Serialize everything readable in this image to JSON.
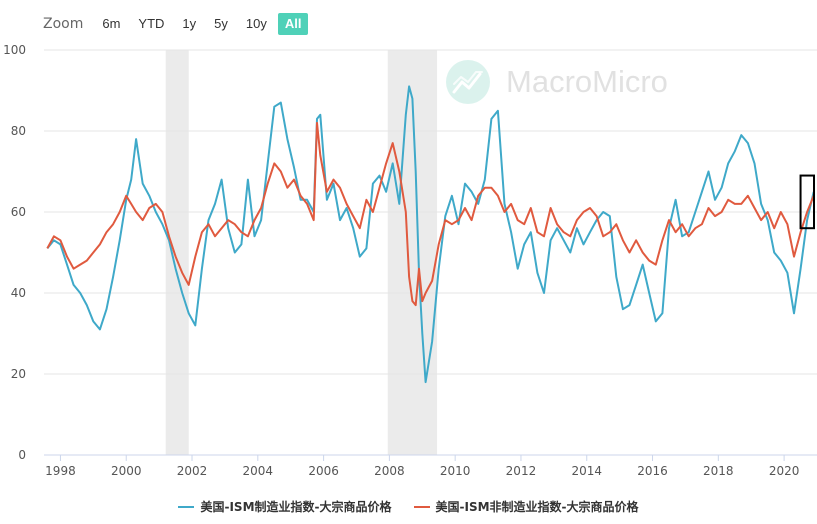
{
  "zoom": {
    "label": "Zoom",
    "buttons": [
      {
        "label": "6m",
        "active": false
      },
      {
        "label": "YTD",
        "active": false
      },
      {
        "label": "1y",
        "active": false
      },
      {
        "label": "5y",
        "active": false
      },
      {
        "label": "10y",
        "active": false
      },
      {
        "label": "All",
        "active": true
      }
    ]
  },
  "watermark": {
    "text": "MacroMicro"
  },
  "colors": {
    "accent": "#4fd1b8",
    "series_blue": "#3fa9c9",
    "series_red": "#e05a3f",
    "recession": "#ebebeb",
    "grid": "#e6e6e6"
  },
  "chart_data": {
    "type": "line",
    "title": "",
    "xlabel": "",
    "ylabel": "",
    "xlim": [
      1997.5,
      2021.0
    ],
    "ylim": [
      0,
      100
    ],
    "yticks": [
      0,
      20,
      40,
      60,
      80,
      100
    ],
    "xticks": [
      1998,
      2000,
      2002,
      2004,
      2006,
      2008,
      2010,
      2012,
      2014,
      2016,
      2018,
      2020
    ],
    "grid": true,
    "legend_position": "bottom",
    "recession_bands": [
      [
        2001.2,
        2001.9
      ],
      [
        2007.95,
        2009.45
      ]
    ],
    "highlight_box": {
      "x": [
        2020.5,
        2021.0
      ],
      "y": [
        56,
        69
      ]
    },
    "series": [
      {
        "name": "美国-ISM制造业指数-大宗商品价格",
        "color": "#3fa9c9",
        "x": [
          1997.6,
          1997.8,
          1998.0,
          1998.2,
          1998.4,
          1998.6,
          1998.8,
          1999.0,
          1999.2,
          1999.4,
          1999.6,
          1999.8,
          2000.0,
          2000.15,
          2000.3,
          2000.5,
          2000.7,
          2000.9,
          2001.1,
          2001.3,
          2001.5,
          2001.7,
          2001.9,
          2002.1,
          2002.3,
          2002.5,
          2002.7,
          2002.9,
          2003.1,
          2003.3,
          2003.5,
          2003.7,
          2003.9,
          2004.1,
          2004.3,
          2004.5,
          2004.7,
          2004.9,
          2005.1,
          2005.3,
          2005.5,
          2005.7,
          2005.8,
          2005.9,
          2006.1,
          2006.3,
          2006.5,
          2006.7,
          2006.9,
          2007.1,
          2007.3,
          2007.5,
          2007.7,
          2007.9,
          2008.1,
          2008.3,
          2008.5,
          2008.6,
          2008.7,
          2008.8,
          2008.9,
          2009.0,
          2009.1,
          2009.3,
          2009.5,
          2009.7,
          2009.9,
          2010.1,
          2010.3,
          2010.5,
          2010.7,
          2010.9,
          2011.1,
          2011.3,
          2011.5,
          2011.7,
          2011.9,
          2012.1,
          2012.3,
          2012.5,
          2012.7,
          2012.9,
          2013.1,
          2013.3,
          2013.5,
          2013.7,
          2013.9,
          2014.1,
          2014.3,
          2014.5,
          2014.7,
          2014.9,
          2015.1,
          2015.3,
          2015.5,
          2015.7,
          2015.9,
          2016.1,
          2016.3,
          2016.5,
          2016.7,
          2016.9,
          2017.1,
          2017.3,
          2017.5,
          2017.7,
          2017.9,
          2018.1,
          2018.3,
          2018.5,
          2018.7,
          2018.9,
          2019.1,
          2019.3,
          2019.5,
          2019.7,
          2019.9,
          2020.1,
          2020.3,
          2020.5,
          2020.7,
          2020.9
        ],
        "y": [
          51,
          53,
          52,
          47,
          42,
          40,
          37,
          33,
          31,
          36,
          44,
          53,
          63,
          68,
          78,
          67,
          64,
          60,
          57,
          53,
          46,
          40,
          35,
          32,
          46,
          58,
          62,
          68,
          56,
          50,
          52,
          68,
          54,
          58,
          72,
          86,
          87,
          78,
          71,
          63,
          63,
          60,
          83,
          84,
          63,
          67,
          58,
          61,
          56,
          49,
          51,
          67,
          69,
          65,
          72,
          62,
          84,
          91,
          88,
          70,
          45,
          30,
          18,
          28,
          46,
          59,
          64,
          57,
          67,
          65,
          62,
          68,
          83,
          85,
          62,
          55,
          46,
          52,
          55,
          45,
          40,
          53,
          56,
          53,
          50,
          56,
          52,
          55,
          58,
          60,
          59,
          44,
          36,
          37,
          42,
          47,
          40,
          33,
          35,
          56,
          63,
          54,
          55,
          60,
          65,
          70,
          63,
          66,
          72,
          75,
          79,
          77,
          72,
          62,
          58,
          50,
          48,
          45,
          35,
          46,
          58,
          65
        ]
      },
      {
        "name": "美国-ISM非制造业指数-大宗商品价格",
        "color": "#e05a3f",
        "x": [
          1997.6,
          1997.8,
          1998.0,
          1998.2,
          1998.4,
          1998.6,
          1998.8,
          1999.0,
          1999.2,
          1999.4,
          1999.6,
          1999.8,
          2000.0,
          2000.15,
          2000.3,
          2000.5,
          2000.7,
          2000.9,
          2001.1,
          2001.3,
          2001.5,
          2001.7,
          2001.9,
          2002.1,
          2002.3,
          2002.5,
          2002.7,
          2002.9,
          2003.1,
          2003.3,
          2003.5,
          2003.7,
          2003.9,
          2004.1,
          2004.3,
          2004.5,
          2004.7,
          2004.9,
          2005.1,
          2005.3,
          2005.5,
          2005.7,
          2005.8,
          2005.9,
          2006.1,
          2006.3,
          2006.5,
          2006.7,
          2006.9,
          2007.1,
          2007.3,
          2007.5,
          2007.7,
          2007.9,
          2008.1,
          2008.3,
          2008.5,
          2008.6,
          2008.7,
          2008.8,
          2008.9,
          2009.0,
          2009.1,
          2009.3,
          2009.5,
          2009.7,
          2009.9,
          2010.1,
          2010.3,
          2010.5,
          2010.7,
          2010.9,
          2011.1,
          2011.3,
          2011.5,
          2011.7,
          2011.9,
          2012.1,
          2012.3,
          2012.5,
          2012.7,
          2012.9,
          2013.1,
          2013.3,
          2013.5,
          2013.7,
          2013.9,
          2014.1,
          2014.3,
          2014.5,
          2014.7,
          2014.9,
          2015.1,
          2015.3,
          2015.5,
          2015.7,
          2015.9,
          2016.1,
          2016.3,
          2016.5,
          2016.7,
          2016.9,
          2017.1,
          2017.3,
          2017.5,
          2017.7,
          2017.9,
          2018.1,
          2018.3,
          2018.5,
          2018.7,
          2018.9,
          2019.1,
          2019.3,
          2019.5,
          2019.7,
          2019.9,
          2020.1,
          2020.3,
          2020.5,
          2020.7,
          2020.9
        ],
        "y": [
          51,
          54,
          53,
          49,
          46,
          47,
          48,
          50,
          52,
          55,
          57,
          60,
          64,
          62,
          60,
          58,
          61,
          62,
          60,
          54,
          49,
          45,
          42,
          49,
          55,
          57,
          54,
          56,
          58,
          57,
          55,
          54,
          58,
          61,
          67,
          72,
          70,
          66,
          68,
          64,
          62,
          58,
          82,
          74,
          65,
          68,
          66,
          62,
          59,
          56,
          63,
          60,
          66,
          72,
          77,
          70,
          60,
          44,
          38,
          37,
          46,
          38,
          40,
          43,
          52,
          58,
          57,
          58,
          61,
          58,
          64,
          66,
          66,
          64,
          60,
          62,
          58,
          57,
          61,
          55,
          54,
          61,
          57,
          55,
          54,
          58,
          60,
          61,
          59,
          54,
          55,
          57,
          53,
          50,
          53,
          50,
          48,
          47,
          53,
          58,
          55,
          57,
          54,
          56,
          57,
          61,
          59,
          60,
          63,
          62,
          62,
          64,
          61,
          58,
          60,
          56,
          60,
          57,
          49,
          55,
          60,
          64
        ]
      }
    ]
  }
}
